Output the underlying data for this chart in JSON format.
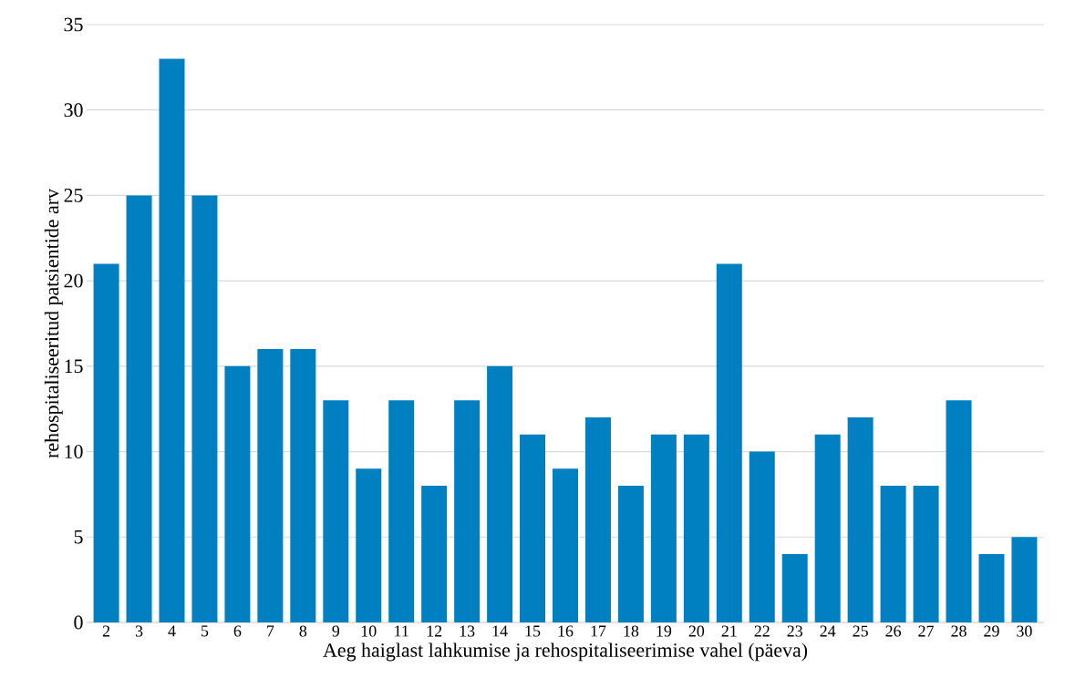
{
  "chart_data": {
    "type": "bar",
    "xlabel": "Aeg haiglast lahkumise ja rehospitaliseerimise vahel (päeva)",
    "ylabel": "rehospitaliseeritud patsientide arv",
    "categories": [
      "2",
      "3",
      "4",
      "5",
      "6",
      "7",
      "8",
      "9",
      "10",
      "11",
      "12",
      "13",
      "14",
      "15",
      "16",
      "17",
      "18",
      "19",
      "20",
      "21",
      "22",
      "23",
      "24",
      "25",
      "26",
      "27",
      "28",
      "29",
      "30"
    ],
    "values": [
      21,
      25,
      33,
      25,
      15,
      16,
      16,
      13,
      9,
      13,
      8,
      13,
      15,
      11,
      9,
      12,
      8,
      11,
      11,
      21,
      10,
      4,
      11,
      12,
      8,
      8,
      13,
      4,
      5
    ],
    "color": "#0080c0",
    "ylim": [
      0,
      35
    ],
    "yticks": [
      0,
      5,
      10,
      15,
      20,
      25,
      30,
      35
    ],
    "grid": "y"
  }
}
